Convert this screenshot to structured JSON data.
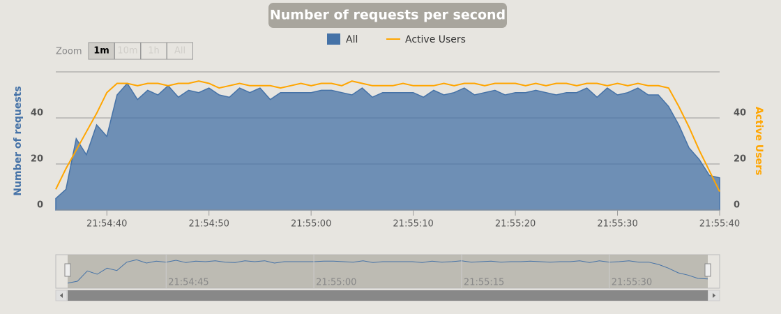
{
  "chart_data": {
    "type": "area-line",
    "title": "Number of requests per second",
    "y_label": "Number of requests",
    "y2_label": "Active Users",
    "x": [
      "21:54:35",
      "21:54:36",
      "21:54:37",
      "21:54:38",
      "21:54:39",
      "21:54:40",
      "21:54:41",
      "21:54:42",
      "21:54:43",
      "21:54:44",
      "21:54:45",
      "21:54:46",
      "21:54:47",
      "21:54:48",
      "21:54:49",
      "21:54:50",
      "21:54:51",
      "21:54:52",
      "21:54:53",
      "21:54:54",
      "21:54:55",
      "21:54:56",
      "21:54:57",
      "21:54:58",
      "21:54:59",
      "21:55:00",
      "21:55:01",
      "21:55:02",
      "21:55:03",
      "21:55:04",
      "21:55:05",
      "21:55:06",
      "21:55:07",
      "21:55:08",
      "21:55:09",
      "21:55:10",
      "21:55:11",
      "21:55:12",
      "21:55:13",
      "21:55:14",
      "21:55:15",
      "21:55:16",
      "21:55:17",
      "21:55:18",
      "21:55:19",
      "21:55:20",
      "21:55:21",
      "21:55:22",
      "21:55:23",
      "21:55:24",
      "21:55:25",
      "21:55:26",
      "21:55:27",
      "21:55:28",
      "21:55:29",
      "21:55:30",
      "21:55:31",
      "21:55:32",
      "21:55:33",
      "21:55:34",
      "21:55:35",
      "21:55:36",
      "21:55:37",
      "21:55:38",
      "21:55:39",
      "21:55:40"
    ],
    "series": [
      {
        "name": "All",
        "color": "#4572a7",
        "values": [
          5,
          9,
          31,
          24,
          37,
          32,
          50,
          55,
          48,
          52,
          50,
          54,
          49,
          52,
          51,
          53,
          50,
          49,
          53,
          51,
          53,
          48,
          51,
          51,
          51,
          51,
          52,
          52,
          51,
          50,
          53,
          49,
          51,
          51,
          51,
          51,
          49,
          52,
          50,
          51,
          53,
          50,
          51,
          52,
          50,
          51,
          51,
          52,
          51,
          50,
          51,
          51,
          53,
          49,
          53,
          50,
          51,
          53,
          50,
          50,
          45,
          37,
          27,
          22,
          15,
          14
        ]
      },
      {
        "name": "Active Users",
        "color": "#ffa500",
        "axis": "y2",
        "values": [
          9,
          18,
          26,
          34,
          42,
          51,
          55,
          55,
          54,
          55,
          55,
          54,
          55,
          55,
          56,
          55,
          53,
          54,
          55,
          54,
          54,
          54,
          53,
          54,
          55,
          54,
          55,
          55,
          54,
          56,
          55,
          54,
          54,
          54,
          55,
          54,
          54,
          54,
          55,
          54,
          55,
          55,
          54,
          55,
          55,
          55,
          54,
          55,
          54,
          55,
          55,
          54,
          55,
          55,
          54,
          55,
          54,
          55,
          54,
          54,
          53,
          45,
          36,
          26,
          17,
          8
        ]
      }
    ],
    "ylim": [
      0,
      60
    ],
    "yticks": [
      0,
      20,
      40
    ],
    "y2lim": [
      0,
      60
    ],
    "y2ticks": [
      0,
      20,
      40
    ],
    "xticks": [
      "21:54:40",
      "21:54:50",
      "21:55:00",
      "21:55:10",
      "21:55:20",
      "21:55:30",
      "21:55:40"
    ],
    "grid": true,
    "legend": "top",
    "range_selector": {
      "label": "Zoom",
      "buttons": [
        "1m",
        "10m",
        "1h",
        "All"
      ]
    },
    "navigator": {
      "xticks": [
        "21:54:45",
        "21:55:00",
        "21:55:15",
        "21:55:30"
      ]
    }
  }
}
